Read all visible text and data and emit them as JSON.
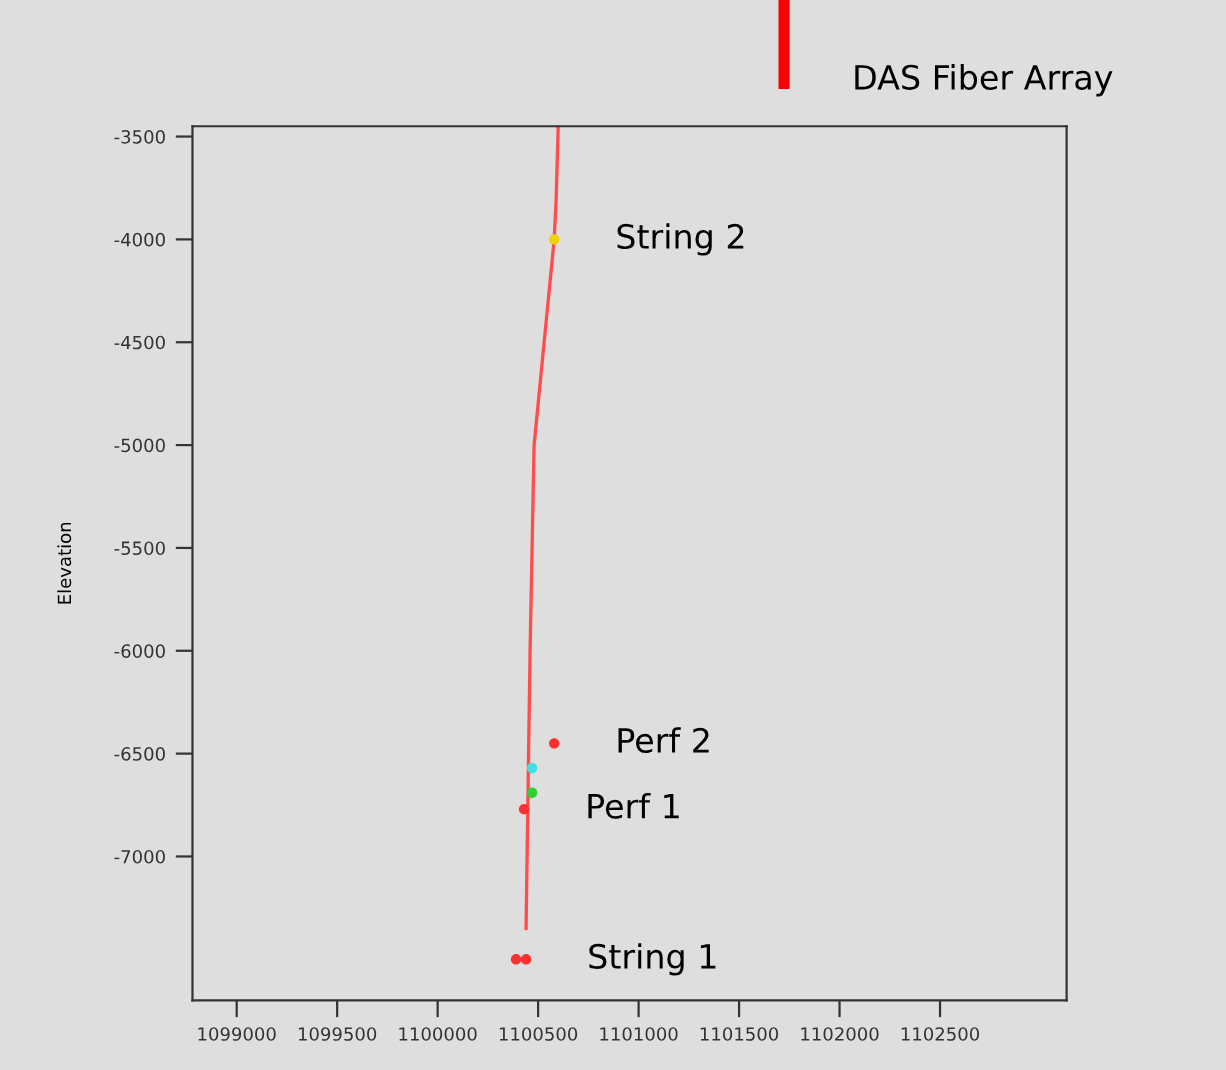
{
  "chart_data": {
    "type": "scatter",
    "ylabel": "Elevation",
    "xlim": [
      1098780,
      1103130
    ],
    "ylim": [
      -7700,
      -3450
    ],
    "xticks": [
      1099000,
      1099500,
      1100000,
      1100500,
      1101000,
      1101500,
      1102000,
      1102500
    ],
    "yticks": [
      -3500,
      -4000,
      -4500,
      -5000,
      -5500,
      -6000,
      -6500,
      -7000
    ],
    "grid": false,
    "legend": false,
    "series": [
      {
        "type": "line",
        "color": "#ff4d4d",
        "x": [
          1100600,
          1100590,
          1100580,
          1100480,
          1100460,
          1100440
        ],
        "values": [
          -3450,
          -3800,
          -4000,
          -5000,
          -6000,
          -7350
        ]
      },
      {
        "marker": "circle",
        "x": [
          1100580,
          1100580,
          1100470,
          1100470,
          1100430,
          1100390,
          1100440
        ],
        "values": [
          -4000,
          -6450,
          -6570,
          -6690,
          -6770,
          -7500,
          -7500
        ],
        "colors": [
          "#f0d000",
          "#ff3030",
          "#40e0e0",
          "#30d030",
          "#ff3030",
          "#ff3030",
          "#ff3030"
        ]
      }
    ],
    "annotations": [
      {
        "text": "String 2",
        "x": 1100580,
        "y": -4000
      },
      {
        "text": "Perf 2",
        "x": 1100580,
        "y": -6450
      },
      {
        "text": "Perf 1",
        "x": 1100430,
        "y": -6770
      },
      {
        "text": "String 1",
        "x": 1100440,
        "y": -7500
      },
      "DAS Fiber Array"
    ]
  }
}
